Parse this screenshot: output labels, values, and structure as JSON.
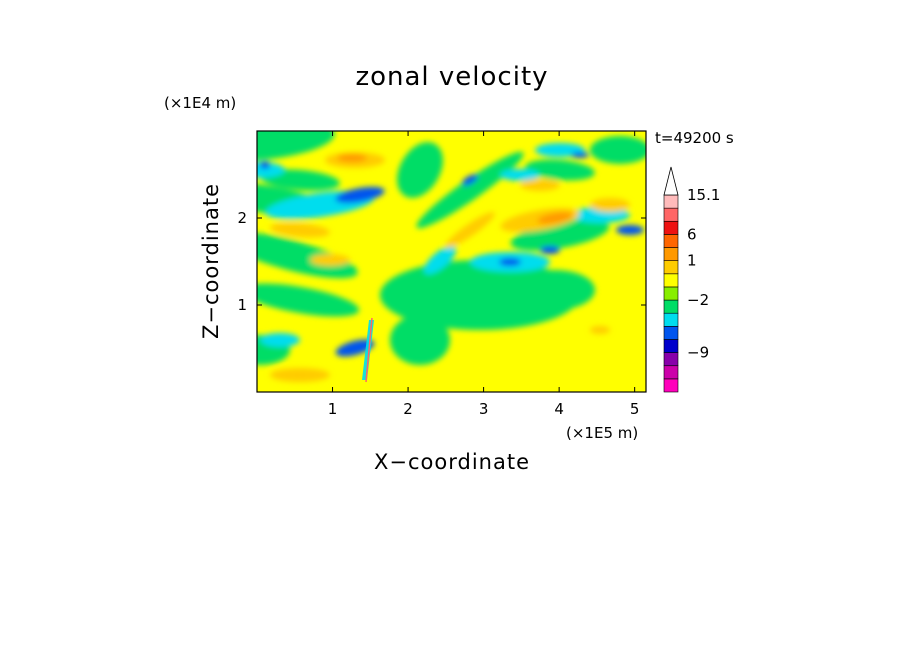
{
  "chart_data": {
    "type": "heatmap",
    "title": "zonal velocity",
    "xlabel": "X−coordinate",
    "ylabel": "Z−coordinate",
    "x_unit": "(×1E5 m)",
    "y_unit": "(×1E4 m)",
    "time_label": "t=49200 s",
    "xlim": [
      0,
      5.15
    ],
    "ylim": [
      0,
      3.0
    ],
    "x_ticks": [
      1,
      2,
      3,
      4,
      5
    ],
    "y_ticks": [
      1,
      2
    ],
    "colorbar": {
      "levels": [
        {
          "color": "#ff00bb"
        },
        {
          "color": "#cc00aa"
        },
        {
          "color": "#8800aa"
        },
        {
          "color": "#0000cc"
        },
        {
          "color": "#0055ee"
        },
        {
          "color": "#00ddee"
        },
        {
          "color": "#00dd66"
        },
        {
          "color": "#88ee00"
        },
        {
          "color": "#ffff00"
        },
        {
          "color": "#ffcc00"
        },
        {
          "color": "#ff9900"
        },
        {
          "color": "#ff6600"
        },
        {
          "color": "#ee1111"
        },
        {
          "color": "#ff6666"
        },
        {
          "color": "#ffbbbb"
        }
      ],
      "tick_labels": [
        {
          "label": "15.1",
          "index": 14
        },
        {
          "label": "6",
          "index": 11
        },
        {
          "label": "1",
          "index": 9
        },
        {
          "label": "−2",
          "index": 6
        },
        {
          "label": "−9",
          "index": 2
        }
      ]
    }
  }
}
